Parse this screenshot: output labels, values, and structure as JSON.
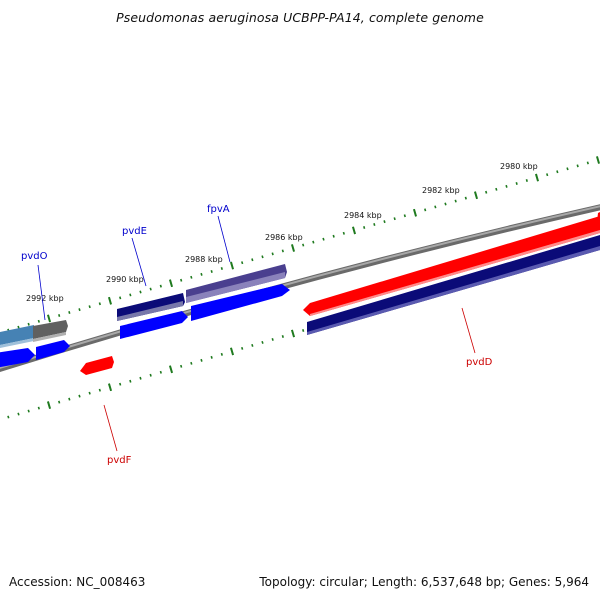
{
  "title": "Pseudomonas aeruginosa UCBPP-PA14, complete genome",
  "footer": {
    "accession": "Accession: NC_008463",
    "topology": "Topology: circular; Length: 6,537,648 bp; Genes: 5,964"
  },
  "scale_labels": [
    "2980 kbp",
    "2982 kbp",
    "2984 kbp",
    "2986 kbp",
    "2988 kbp",
    "2990 kbp",
    "2992 kbp"
  ],
  "gene_labels": [
    {
      "name": "pvdO",
      "color": "#0000cc"
    },
    {
      "name": "pvdE",
      "color": "#0000cc"
    },
    {
      "name": "fpvA",
      "color": "#0000cc"
    },
    {
      "name": "pvdD",
      "color": "#cc0000"
    },
    {
      "name": "pvdF",
      "color": "#cc0000"
    }
  ],
  "colors": {
    "backbone": "#808080",
    "tick": "#1f7a1f",
    "forward_cds": "#0000ff",
    "forward_gene": "#4a3f8f",
    "reverse_gene": "#0b0b78",
    "reverse_cds": "#ff0000",
    "other_gene": "#4682b4",
    "other_cds": "#606060"
  }
}
